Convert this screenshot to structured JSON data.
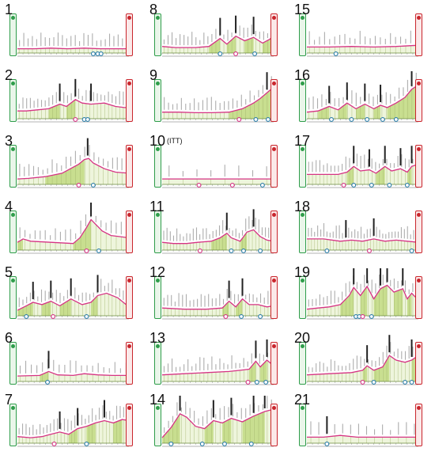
{
  "stages": [
    {
      "num": "1",
      "suffix": "",
      "ex": [
        [
          0,
          2
        ],
        [
          0.15,
          2
        ],
        [
          0.3,
          3
        ],
        [
          0.45,
          2
        ],
        [
          0.6,
          3
        ],
        [
          0.75,
          2
        ],
        [
          1,
          2
        ]
      ],
      "peaks": [],
      "markers": [
        0.68,
        0.72,
        0.75
      ],
      "sprints": [
        0.69
      ],
      "labels": 26
    },
    {
      "num": "2",
      "suffix": "",
      "ex": [
        [
          0,
          8
        ],
        [
          0.08,
          8
        ],
        [
          0.18,
          10
        ],
        [
          0.28,
          12
        ],
        [
          0.38,
          20
        ],
        [
          0.44,
          16
        ],
        [
          0.52,
          28
        ],
        [
          0.58,
          22
        ],
        [
          0.66,
          20
        ],
        [
          0.78,
          22
        ],
        [
          0.88,
          16
        ],
        [
          0.96,
          14
        ],
        [
          1,
          14
        ]
      ],
      "peaks": [
        0.38,
        0.52,
        0.66
      ],
      "markers": [
        0.52,
        0.6,
        0.63
      ],
      "sprints": [
        0.52
      ],
      "labels": 30
    },
    {
      "num": "3",
      "suffix": "",
      "ex": [
        [
          0,
          4
        ],
        [
          0.1,
          5
        ],
        [
          0.25,
          8
        ],
        [
          0.4,
          14
        ],
        [
          0.55,
          30
        ],
        [
          0.6,
          38
        ],
        [
          0.64,
          40
        ],
        [
          0.68,
          32
        ],
        [
          0.78,
          22
        ],
        [
          0.88,
          16
        ],
        [
          1,
          14
        ]
      ],
      "peaks": [
        0.63
      ],
      "markers": [
        0.55,
        0.68
      ],
      "sprints": [
        0.55
      ],
      "labels": 24
    },
    {
      "num": "4",
      "suffix": "",
      "ex": [
        [
          0,
          8
        ],
        [
          0.05,
          14
        ],
        [
          0.12,
          10
        ],
        [
          0.3,
          8
        ],
        [
          0.5,
          6
        ],
        [
          0.56,
          16
        ],
        [
          0.62,
          34
        ],
        [
          0.66,
          48
        ],
        [
          0.7,
          40
        ],
        [
          0.76,
          28
        ],
        [
          0.84,
          20
        ],
        [
          0.92,
          18
        ],
        [
          1,
          16
        ]
      ],
      "peaks": [
        0.66
      ],
      "markers": [
        0.62,
        0.73
      ],
      "sprints": [
        0.62
      ],
      "labels": 22
    },
    {
      "num": "5",
      "suffix": "",
      "ex": [
        [
          0,
          4
        ],
        [
          0.08,
          12
        ],
        [
          0.14,
          18
        ],
        [
          0.22,
          14
        ],
        [
          0.3,
          20
        ],
        [
          0.38,
          12
        ],
        [
          0.48,
          24
        ],
        [
          0.58,
          14
        ],
        [
          0.66,
          18
        ],
        [
          0.72,
          30
        ],
        [
          0.8,
          34
        ],
        [
          0.9,
          26
        ],
        [
          1,
          10
        ]
      ],
      "peaks": [
        0.14,
        0.3,
        0.48,
        0.72
      ],
      "markers": [
        0.08,
        0.32,
        0.62
      ],
      "sprints": [
        0.32
      ],
      "labels": 30
    },
    {
      "num": "6",
      "suffix": "",
      "ex": [
        [
          0,
          4
        ],
        [
          0.2,
          5
        ],
        [
          0.28,
          12
        ],
        [
          0.36,
          6
        ],
        [
          0.5,
          5
        ],
        [
          0.6,
          8
        ],
        [
          0.72,
          6
        ],
        [
          0.85,
          5
        ],
        [
          1,
          5
        ]
      ],
      "peaks": [
        0.28
      ],
      "markers": [
        0.27
      ],
      "sprints": [],
      "labels": 20
    },
    {
      "num": "7",
      "suffix": "",
      "ex": [
        [
          0,
          6
        ],
        [
          0.12,
          4
        ],
        [
          0.22,
          6
        ],
        [
          0.3,
          10
        ],
        [
          0.38,
          14
        ],
        [
          0.46,
          10
        ],
        [
          0.54,
          20
        ],
        [
          0.62,
          24
        ],
        [
          0.7,
          30
        ],
        [
          0.78,
          34
        ],
        [
          0.86,
          30
        ],
        [
          0.94,
          36
        ],
        [
          1,
          34
        ]
      ],
      "peaks": [
        0.38,
        0.54,
        0.78
      ],
      "markers": [
        0.33,
        0.62
      ],
      "sprints": [
        0.33
      ],
      "labels": 32
    },
    {
      "num": "8",
      "suffix": "",
      "ex": [
        [
          0,
          6
        ],
        [
          0.12,
          4
        ],
        [
          0.3,
          4
        ],
        [
          0.42,
          6
        ],
        [
          0.52,
          20
        ],
        [
          0.58,
          10
        ],
        [
          0.66,
          24
        ],
        [
          0.74,
          16
        ],
        [
          0.82,
          22
        ],
        [
          0.9,
          12
        ],
        [
          0.96,
          18
        ],
        [
          1,
          24
        ]
      ],
      "peaks": [
        0.52,
        0.66,
        0.82
      ],
      "markers": [
        0.52,
        0.66,
        0.83
      ],
      "sprints": [
        0.66
      ],
      "labels": 28
    },
    {
      "num": "9",
      "suffix": "",
      "ex": [
        [
          0,
          6
        ],
        [
          0.15,
          6
        ],
        [
          0.3,
          5
        ],
        [
          0.45,
          5
        ],
        [
          0.6,
          6
        ],
        [
          0.72,
          12
        ],
        [
          0.82,
          22
        ],
        [
          0.88,
          30
        ],
        [
          0.94,
          40
        ],
        [
          1,
          50
        ]
      ],
      "peaks": [
        0.94
      ],
      "markers": [
        0.69,
        0.84,
        0.95
      ],
      "sprints": [
        0.69
      ],
      "labels": 26
    },
    {
      "num": "10",
      "suffix": "(ITT)",
      "ex": [
        [
          0,
          4
        ],
        [
          0.2,
          4
        ],
        [
          0.4,
          4
        ],
        [
          0.6,
          4
        ],
        [
          0.8,
          4
        ],
        [
          1,
          4
        ]
      ],
      "peaks": [],
      "markers": [
        0.33,
        0.63,
        0.9
      ],
      "sprints": [
        0.33,
        0.63
      ],
      "labels": 8
    },
    {
      "num": "11",
      "suffix": "",
      "ex": [
        [
          0,
          8
        ],
        [
          0.1,
          6
        ],
        [
          0.22,
          6
        ],
        [
          0.32,
          8
        ],
        [
          0.44,
          10
        ],
        [
          0.52,
          16
        ],
        [
          0.58,
          24
        ],
        [
          0.62,
          16
        ],
        [
          0.7,
          10
        ],
        [
          0.76,
          26
        ],
        [
          0.82,
          30
        ],
        [
          0.88,
          18
        ],
        [
          0.94,
          12
        ],
        [
          1,
          10
        ]
      ],
      "peaks": [
        0.58,
        0.82
      ],
      "markers": [
        0.34,
        0.62,
        0.73,
        0.88
      ],
      "sprints": [
        0.34
      ],
      "labels": 34
    },
    {
      "num": "12",
      "suffix": "",
      "ex": [
        [
          0,
          8
        ],
        [
          0.2,
          6
        ],
        [
          0.4,
          6
        ],
        [
          0.54,
          8
        ],
        [
          0.6,
          20
        ],
        [
          0.66,
          10
        ],
        [
          0.72,
          24
        ],
        [
          0.78,
          14
        ],
        [
          0.86,
          14
        ],
        [
          0.94,
          10
        ],
        [
          1,
          12
        ]
      ],
      "peaks": [
        0.6,
        0.72
      ],
      "markers": [
        0.57,
        0.71,
        0.88
      ],
      "sprints": [
        0.57
      ],
      "labels": 30
    },
    {
      "num": "13",
      "suffix": "",
      "ex": [
        [
          0,
          6
        ],
        [
          0.2,
          8
        ],
        [
          0.4,
          10
        ],
        [
          0.6,
          12
        ],
        [
          0.7,
          14
        ],
        [
          0.78,
          16
        ],
        [
          0.84,
          30
        ],
        [
          0.88,
          20
        ],
        [
          0.94,
          32
        ],
        [
          1,
          22
        ]
      ],
      "peaks": [
        0.84,
        0.94
      ],
      "markers": [
        0.77,
        0.85,
        0.93
      ],
      "sprints": [
        0.77
      ],
      "labels": 28
    },
    {
      "num": "14",
      "suffix": "",
      "ex": [
        [
          0,
          4
        ],
        [
          0.08,
          22
        ],
        [
          0.16,
          46
        ],
        [
          0.22,
          40
        ],
        [
          0.3,
          24
        ],
        [
          0.38,
          20
        ],
        [
          0.46,
          34
        ],
        [
          0.54,
          30
        ],
        [
          0.62,
          38
        ],
        [
          0.72,
          32
        ],
        [
          0.82,
          42
        ],
        [
          0.92,
          50
        ],
        [
          1,
          54
        ]
      ],
      "peaks": [
        0.16,
        0.46,
        0.62,
        0.82,
        0.92
      ],
      "markers": [
        0.08,
        0.36,
        0.56,
        0.8
      ],
      "sprints": [],
      "labels": 26
    },
    {
      "num": "15",
      "suffix": "",
      "ex": [
        [
          0,
          5
        ],
        [
          0.2,
          5
        ],
        [
          0.4,
          6
        ],
        [
          0.6,
          5
        ],
        [
          0.8,
          6
        ],
        [
          1,
          8
        ]
      ],
      "peaks": [],
      "markers": [
        0.26
      ],
      "sprints": [],
      "labels": 22
    },
    {
      "num": "16",
      "suffix": "",
      "ex": [
        [
          0,
          6
        ],
        [
          0.1,
          8
        ],
        [
          0.2,
          16
        ],
        [
          0.28,
          10
        ],
        [
          0.36,
          22
        ],
        [
          0.44,
          12
        ],
        [
          0.52,
          20
        ],
        [
          0.6,
          12
        ],
        [
          0.66,
          18
        ],
        [
          0.72,
          14
        ],
        [
          0.8,
          22
        ],
        [
          0.88,
          32
        ],
        [
          0.94,
          46
        ],
        [
          1,
          54
        ]
      ],
      "peaks": [
        0.2,
        0.36,
        0.52,
        0.66,
        0.94
      ],
      "markers": [
        0.22,
        0.4,
        0.54,
        0.68,
        0.8
      ],
      "sprints": [],
      "labels": 26
    },
    {
      "num": "17",
      "suffix": "",
      "ex": [
        [
          0,
          12
        ],
        [
          0.15,
          12
        ],
        [
          0.28,
          12
        ],
        [
          0.36,
          16
        ],
        [
          0.42,
          26
        ],
        [
          0.48,
          18
        ],
        [
          0.56,
          20
        ],
        [
          0.62,
          14
        ],
        [
          0.7,
          26
        ],
        [
          0.76,
          18
        ],
        [
          0.84,
          22
        ],
        [
          0.9,
          16
        ],
        [
          0.94,
          26
        ],
        [
          1,
          30
        ]
      ],
      "peaks": [
        0.42,
        0.56,
        0.7,
        0.84,
        0.94
      ],
      "markers": [
        0.33,
        0.42,
        0.58,
        0.74,
        0.9
      ],
      "sprints": [
        0.33
      ],
      "labels": 30
    },
    {
      "num": "18",
      "suffix": "",
      "ex": [
        [
          0,
          14
        ],
        [
          0.15,
          14
        ],
        [
          0.3,
          10
        ],
        [
          0.4,
          12
        ],
        [
          0.5,
          10
        ],
        [
          0.6,
          14
        ],
        [
          0.7,
          10
        ],
        [
          0.8,
          12
        ],
        [
          0.9,
          10
        ],
        [
          1,
          8
        ]
      ],
      "peaks": [
        0.35,
        0.6
      ],
      "markers": [
        0.18,
        0.56,
        0.94
      ],
      "sprints": [
        0.56
      ],
      "labels": 36
    },
    {
      "num": "19",
      "suffix": "",
      "ex": [
        [
          0,
          6
        ],
        [
          0.1,
          8
        ],
        [
          0.2,
          10
        ],
        [
          0.3,
          14
        ],
        [
          0.38,
          30
        ],
        [
          0.42,
          44
        ],
        [
          0.48,
          30
        ],
        [
          0.54,
          46
        ],
        [
          0.6,
          24
        ],
        [
          0.66,
          42
        ],
        [
          0.72,
          48
        ],
        [
          0.78,
          36
        ],
        [
          0.86,
          42
        ],
        [
          0.9,
          24
        ],
        [
          0.94,
          34
        ],
        [
          1,
          22
        ]
      ],
      "peaks": [
        0.42,
        0.54,
        0.66,
        0.72,
        0.86
      ],
      "markers": [
        0.44,
        0.47,
        0.5,
        0.58
      ],
      "sprints": [
        0.5
      ],
      "labels": 30
    },
    {
      "num": "20",
      "suffix": "",
      "ex": [
        [
          0,
          6
        ],
        [
          0.2,
          8
        ],
        [
          0.4,
          10
        ],
        [
          0.5,
          14
        ],
        [
          0.54,
          22
        ],
        [
          0.6,
          14
        ],
        [
          0.68,
          20
        ],
        [
          0.74,
          40
        ],
        [
          0.8,
          32
        ],
        [
          0.88,
          28
        ],
        [
          0.94,
          32
        ],
        [
          1,
          40
        ]
      ],
      "peaks": [
        0.54,
        0.74,
        0.94
      ],
      "markers": [
        0.5,
        0.6,
        0.88,
        0.94
      ],
      "sprints": [
        0.5
      ],
      "labels": 30
    },
    {
      "num": "21",
      "suffix": "",
      "ex": [
        [
          0,
          5
        ],
        [
          0.15,
          5
        ],
        [
          0.3,
          8
        ],
        [
          0.45,
          5
        ],
        [
          0.6,
          5
        ],
        [
          0.8,
          5
        ],
        [
          1,
          5
        ]
      ],
      "peaks": [
        0.18
      ],
      "markers": [
        0.18
      ],
      "sprints": [],
      "labels": 14
    }
  ],
  "colors": {
    "profile": "#d63384",
    "fill": "#c8de8f",
    "fillLight": "#eef5dc",
    "start": "#2e9d4a",
    "finish": "#c9252c",
    "axis": "#6a8a3a"
  }
}
